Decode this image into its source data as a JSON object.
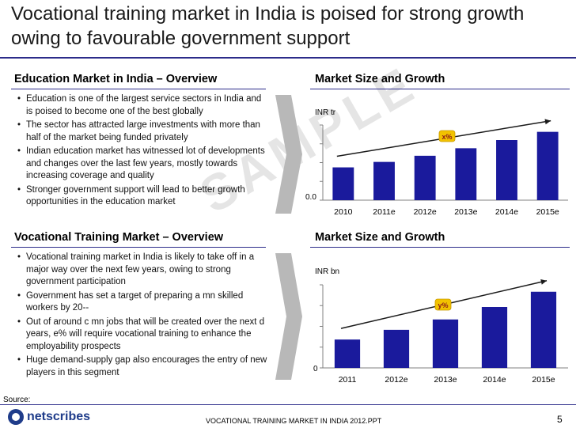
{
  "title": "Vocational training market in India is poised for strong growth owing to favourable government support",
  "education": {
    "heading": "Education Market in India – Overview",
    "bullets": [
      "Education is one of the largest service sectors in India and is poised to become one of the best globally",
      "The sector has attracted large investments with more than half of the market being funded privately",
      "Indian education market has witnessed lot of developments and changes over the last few years, mostly towards increasing coverage and quality",
      "Stronger government support will lead to better growth opportunities in the education market"
    ]
  },
  "vocational": {
    "heading": "Vocational Training Market – Overview",
    "bullets": [
      "Vocational training market in India is likely to take off in a major way over the next few years, owing to strong government participation",
      "Government has set a target of preparing a mn skilled workers by 20--",
      "Out of around c mn jobs that will be created over the next d years, e% will require vocational training to enhance the employability prospects",
      "Huge demand-supply gap also encourages the entry of new players in this segment"
    ]
  },
  "bullet_char": "•",
  "watermark": "SAMPLE",
  "source": "Source:",
  "footer": {
    "logo": "netscribes",
    "text": "VOCATIONAL TRAINING MARKET IN INDIA 2012.PPT",
    "page": "5"
  },
  "colors": {
    "bar": "#1a1a9c",
    "accent": "#2c2c8a",
    "cagr_badge": "#f2c200"
  },
  "chart_data": [
    {
      "type": "bar",
      "title": "Market Size and Growth",
      "ylabel": "INR tr",
      "zero_label": "0.0",
      "categories": [
        "2010",
        "2011e",
        "2012e",
        "2013e",
        "2014e",
        "2015e"
      ],
      "values": [
        0.48,
        0.56,
        0.65,
        0.76,
        0.88,
        1.0
      ],
      "ylim": [
        0,
        1.1
      ],
      "cagr_label": "x%",
      "grid": false
    },
    {
      "type": "bar",
      "title": "Market Size and Growth",
      "ylabel": "INR bn",
      "zero_label": "0",
      "categories": [
        "2011",
        "2012e",
        "2013e",
        "2014e",
        "2015e"
      ],
      "values": [
        0.41,
        0.55,
        0.7,
        0.88,
        1.1
      ],
      "ylim": [
        0,
        1.2
      ],
      "cagr_label": "y%",
      "grid": false
    }
  ]
}
